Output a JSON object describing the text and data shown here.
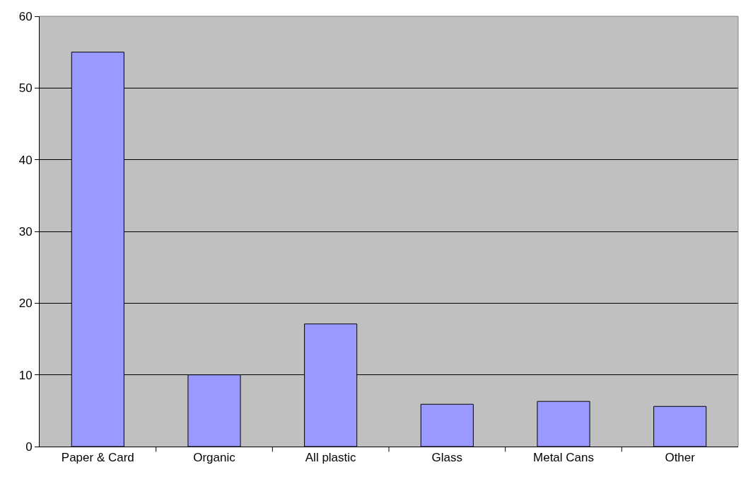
{
  "chart_data": {
    "type": "bar",
    "categories": [
      "Paper & Card",
      "Organic",
      "All plastic",
      "Glass",
      "Metal Cans",
      "Other"
    ],
    "values": [
      55,
      10,
      17.1,
      5.9,
      6.3,
      5.6
    ],
    "color": "#9999ff",
    "ylim": [
      0,
      60
    ],
    "yticks": [
      0,
      10,
      20,
      30,
      40,
      50,
      60
    ],
    "grid": "y",
    "legend": false
  }
}
